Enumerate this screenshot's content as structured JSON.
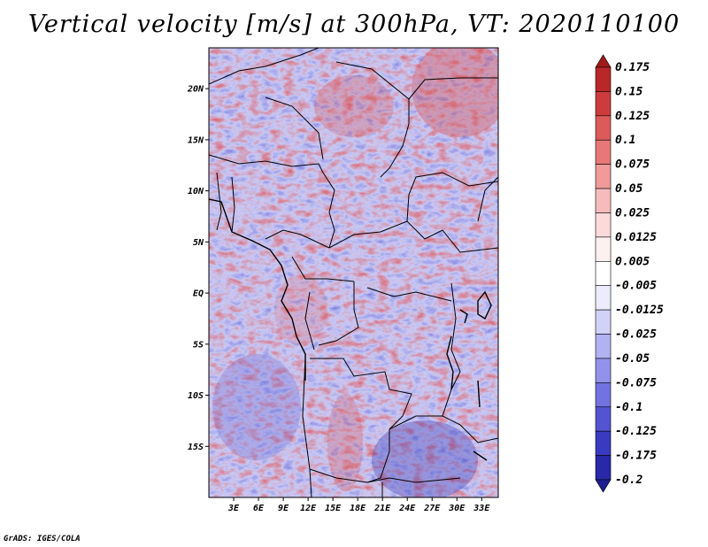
{
  "title": "Vertical velocity [m/s] at 300hPa, VT: 2020110100",
  "credit": "GrADS: IGES/COLA",
  "chart_data": {
    "type": "heatmap",
    "title": "Vertical velocity [m/s] at 300hPa, VT: 2020110100",
    "variable": "Vertical velocity",
    "units": "m/s",
    "level": "300hPa",
    "valid_time": "2020110100",
    "lon_range": [
      0,
      35
    ],
    "lat_range": [
      -20,
      24
    ],
    "x_ticks": [
      {
        "value": 3,
        "label": "3E"
      },
      {
        "value": 6,
        "label": "6E"
      },
      {
        "value": 9,
        "label": "9E"
      },
      {
        "value": 12,
        "label": "12E"
      },
      {
        "value": 15,
        "label": "15E"
      },
      {
        "value": 18,
        "label": "18E"
      },
      {
        "value": 21,
        "label": "21E"
      },
      {
        "value": 24,
        "label": "24E"
      },
      {
        "value": 27,
        "label": "27E"
      },
      {
        "value": 30,
        "label": "30E"
      },
      {
        "value": 33,
        "label": "33E"
      }
    ],
    "y_ticks": [
      {
        "value": 20,
        "label": "20N"
      },
      {
        "value": 15,
        "label": "15N"
      },
      {
        "value": 10,
        "label": "10N"
      },
      {
        "value": 5,
        "label": "5N"
      },
      {
        "value": 0,
        "label": "EQ"
      },
      {
        "value": -5,
        "label": "5S"
      },
      {
        "value": -10,
        "label": "10S"
      },
      {
        "value": -15,
        "label": "15S"
      }
    ],
    "colorbar": {
      "levels": [
        "0.175",
        "0.15",
        "0.125",
        "0.1",
        "0.075",
        "0.05",
        "0.025",
        "0.0125",
        "0.005",
        "-0.005",
        "-0.0125",
        "-0.025",
        "-0.05",
        "-0.075",
        "-0.1",
        "-0.125",
        "-0.175",
        "-0.2"
      ],
      "colors": [
        "#a01a1a",
        "#b82828",
        "#cc3c3c",
        "#dc5a5a",
        "#e87878",
        "#f09a9a",
        "#f6bcbc",
        "#fadada",
        "#fdf0f0",
        "#ffffff",
        "#ececfc",
        "#d2d2f8",
        "#b2b2f2",
        "#9292ea",
        "#7272e0",
        "#5454d2",
        "#3a3ac0",
        "#2828a8",
        "#1e1e90"
      ]
    }
  }
}
